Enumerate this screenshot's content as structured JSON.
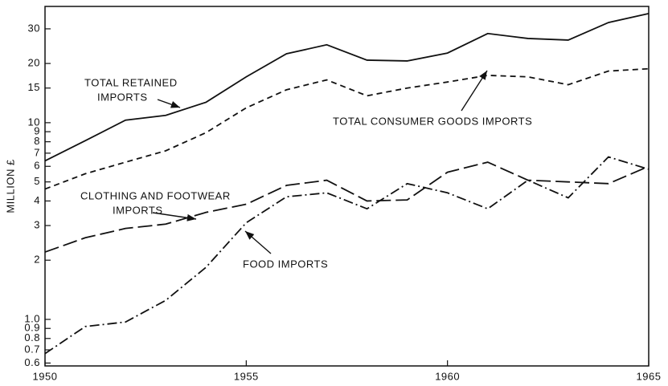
{
  "chart_data": {
    "type": "line",
    "ylabel": "MILLION £",
    "log_y": true,
    "xlim": [
      1950,
      1965
    ],
    "xticks": [
      1950,
      1955,
      1960,
      1965
    ],
    "ylim": [
      0.58,
      39
    ],
    "yticks": [
      0.6,
      0.7,
      0.8,
      0.9,
      {
        "value": 1,
        "label": "1.0"
      },
      2,
      3,
      4,
      5,
      6,
      7,
      8,
      9,
      10,
      15,
      20,
      30
    ],
    "x": [
      1950,
      1951,
      1952,
      1953,
      1954,
      1955,
      1956,
      1957,
      1958,
      1959,
      1960,
      1961,
      1962,
      1963,
      1964,
      1965
    ],
    "series": [
      {
        "label": [
          "TOTAL RETAINED",
          "IMPORTS"
        ],
        "color": "#111111",
        "style": "solid",
        "values": [
          6.4,
          8.1,
          10.3,
          10.9,
          12.7,
          17.1,
          22.4,
          24.9,
          20.8,
          20.6,
          22.6,
          28.4,
          26.8,
          26.3,
          32.3,
          35.9
        ]
      },
      {
        "label": [
          "TOTAL CONSUMER GOODS IMPORTS"
        ],
        "color": "#111111",
        "style": "dashed",
        "values": [
          4.6,
          5.5,
          6.3,
          7.2,
          8.9,
          11.9,
          14.7,
          16.5,
          13.7,
          15.0,
          16.1,
          17.4,
          17.1,
          15.6,
          18.3,
          18.8
        ]
      },
      {
        "label": [
          "CLOTHING AND FOOTWEAR",
          "IMPORTS"
        ],
        "color": "#111111",
        "style": "long-dash",
        "values": [
          2.2,
          2.6,
          2.9,
          3.05,
          3.5,
          3.85,
          4.8,
          5.1,
          4.0,
          4.05,
          5.6,
          6.3,
          5.1,
          5.0,
          4.9,
          6.0
        ]
      },
      {
        "label": [
          "FOOD IMPORTS"
        ],
        "color": "#111111",
        "style": "dash-dot",
        "values": [
          0.67,
          0.92,
          0.97,
          1.25,
          1.84,
          3.1,
          4.2,
          4.4,
          3.65,
          4.9,
          4.4,
          3.65,
          5.1,
          4.15,
          6.7,
          5.8
        ]
      }
    ]
  }
}
